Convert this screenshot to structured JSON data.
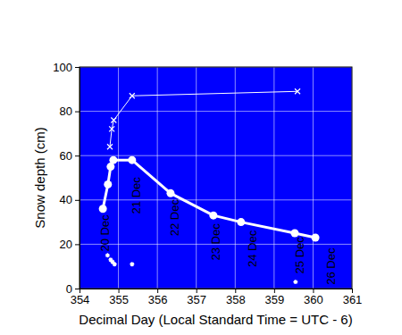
{
  "chart_data": {
    "type": "line",
    "xlabel": "Decimal Day (Local Standard Time = UTC - 6)",
    "ylabel": "Snow depth (cm)",
    "xlim": [
      354,
      361
    ],
    "xticks": [
      354,
      355,
      356,
      357,
      358,
      359,
      360,
      361
    ],
    "ylim": [
      0,
      100
    ],
    "yticks": [
      0,
      20,
      40,
      60,
      80,
      100
    ],
    "grid": true,
    "series": [
      {
        "color": "#ffffff",
        "marker": "x",
        "line_style": "solid",
        "x": [
          354.78,
          354.83,
          354.88,
          355.35,
          359.6
        ],
        "values": [
          64,
          72,
          76,
          87,
          89
        ]
      },
      {
        "color": "#ffffff",
        "marker": "circle",
        "line_style": "solid",
        "x": [
          354.6,
          354.73,
          354.8,
          354.87,
          355.35,
          356.34,
          357.44,
          358.15,
          359.53,
          360.06
        ],
        "values": [
          36,
          47,
          55,
          58,
          58,
          43,
          33,
          30,
          25,
          23
        ]
      },
      {
        "type": "scatter",
        "color": "#ffffff",
        "marker": "asterisk",
        "x": [
          354.72,
          354.8,
          354.85,
          354.9,
          355.35,
          359.55
        ],
        "values": [
          15,
          13,
          12,
          11,
          11,
          3
        ]
      }
    ],
    "annotations": [
      {
        "text": "20 Dec",
        "x": 354.65,
        "y": 25
      },
      {
        "text": "21 Dec",
        "x": 355.45,
        "y": 42
      },
      {
        "text": "22 Dec",
        "x": 356.45,
        "y": 32
      },
      {
        "text": "23 Dec",
        "x": 357.5,
        "y": 21
      },
      {
        "text": "24 Dec",
        "x": 358.45,
        "y": 18
      },
      {
        "text": "25 Dec",
        "x": 359.65,
        "y": 15
      },
      {
        "text": "26 Dec",
        "x": 360.45,
        "y": 10
      }
    ]
  }
}
